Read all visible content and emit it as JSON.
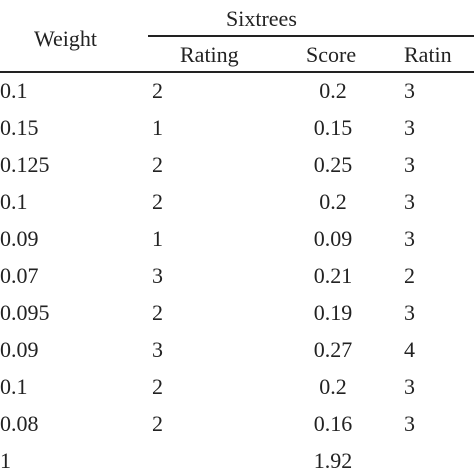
{
  "header": {
    "weight": "Weight",
    "group": "Sixtrees",
    "rating": "Rating",
    "score": "Score",
    "rating_partial": "Ratin"
  },
  "rows": [
    {
      "weight": "0.1",
      "rating": "2",
      "score": "0.2",
      "rating2": "3"
    },
    {
      "weight": "0.15",
      "rating": "1",
      "score": "0.15",
      "rating2": "3"
    },
    {
      "weight": "0.125",
      "rating": "2",
      "score": "0.25",
      "rating2": "3"
    },
    {
      "weight": "0.1",
      "rating": "2",
      "score": "0.2",
      "rating2": "3"
    },
    {
      "weight": "0.09",
      "rating": "1",
      "score": "0.09",
      "rating2": "3"
    },
    {
      "weight": "0.07",
      "rating": "3",
      "score": "0.21",
      "rating2": "2"
    },
    {
      "weight": "0.095",
      "rating": "2",
      "score": "0.19",
      "rating2": "3"
    },
    {
      "weight": "0.09",
      "rating": "3",
      "score": "0.27",
      "rating2": "4"
    },
    {
      "weight": "0.1",
      "rating": "2",
      "score": "0.2",
      "rating2": "3"
    },
    {
      "weight": "0.08",
      "rating": "2",
      "score": "0.16",
      "rating2": "3"
    },
    {
      "weight": "1",
      "rating": "",
      "score": "1.92",
      "rating2": ""
    }
  ]
}
